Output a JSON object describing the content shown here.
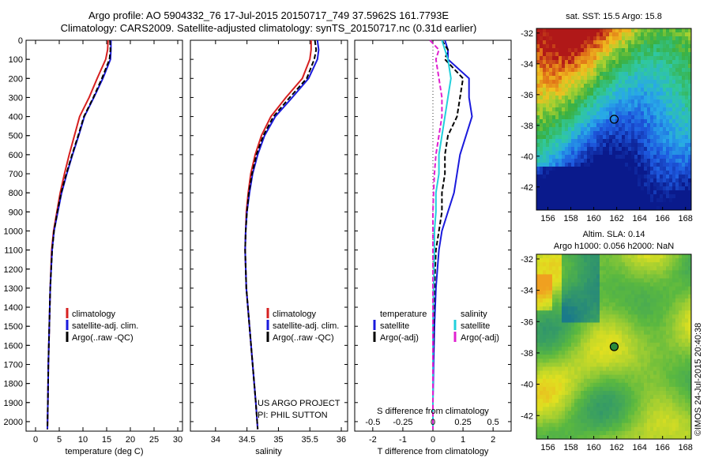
{
  "header": {
    "line1": "Argo profile: AO 5904332_76 17-Jul-2015 20150717_749 37.5962S 161.7793E",
    "line2": "Climatology: CARS2009. Satellite-adjusted climatology: synTS_20150717.nc (0.31d earlier)"
  },
  "colors": {
    "climatology": "#d62020",
    "satellite": "#1a1adc",
    "argo": "#000000",
    "satellite_salinity": "#22d0dc",
    "argo_salinity": "#e020d0"
  },
  "legend": {
    "climatology": "climatology",
    "satellite": "satellite-adj. clim.",
    "argo": "Argo(..raw -QC)"
  },
  "diff_legend": {
    "temp_title": "temperature",
    "sal_title": "salinity",
    "satellite": "satellite",
    "argo": "Argo(-adj)"
  },
  "credits": {
    "project": "US ARGO PROJECT",
    "pi": "PI: PHIL SUTTON"
  },
  "chart_data": [
    {
      "type": "line",
      "ylabel": "",
      "xlabel": "temperature (deg C)",
      "xlim": [
        -2,
        31
      ],
      "ylim": [
        0,
        2050
      ],
      "y_reversed": true,
      "xticks": [
        0,
        5,
        10,
        15,
        20,
        25,
        30
      ],
      "yticks": [
        0,
        100,
        200,
        300,
        400,
        500,
        600,
        700,
        800,
        900,
        1000,
        1100,
        1200,
        1300,
        1400,
        1500,
        1600,
        1700,
        1800,
        1900,
        2000
      ],
      "series": [
        {
          "name": "climatology",
          "color": "#d62020",
          "style": "solid",
          "x": [
            15.3,
            15.2,
            14.8,
            13.0,
            11.3,
            9.3,
            8.2,
            7.1,
            6.1,
            5.2,
            4.5,
            3.8,
            3.4,
            3.1,
            2.9,
            2.7,
            2.6,
            2.5
          ],
          "y": [
            0,
            50,
            100,
            200,
            300,
            400,
            500,
            600,
            700,
            800,
            900,
            1000,
            1100,
            1300,
            1500,
            1700,
            1900,
            2040
          ]
        },
        {
          "name": "satellite-adj. clim.",
          "color": "#1a1adc",
          "style": "solid",
          "x": [
            15.9,
            15.9,
            15.8,
            14.2,
            12.3,
            10.3,
            9.1,
            7.8,
            6.6,
            5.5,
            4.7,
            3.9,
            3.5,
            3.1,
            2.9,
            2.7,
            2.6,
            2.5
          ],
          "y": [
            0,
            50,
            100,
            200,
            300,
            400,
            500,
            600,
            700,
            800,
            900,
            1000,
            1100,
            1300,
            1500,
            1700,
            1900,
            2040
          ]
        },
        {
          "name": "Argo(..raw -QC)",
          "color": "#000000",
          "style": "dash",
          "x": [
            15.7,
            15.8,
            15.6,
            14.0,
            12.2,
            10.2,
            9.0,
            7.7,
            6.5,
            5.4,
            4.6,
            3.9,
            3.5,
            3.1,
            2.9,
            2.7,
            2.6,
            2.5
          ],
          "y": [
            0,
            50,
            100,
            200,
            300,
            400,
            500,
            600,
            700,
            800,
            900,
            1000,
            1100,
            1300,
            1500,
            1700,
            1900,
            2040
          ]
        }
      ]
    },
    {
      "type": "line",
      "xlabel": "salinity",
      "xlim": [
        33.6,
        36.1
      ],
      "ylim": [
        0,
        2050
      ],
      "y_reversed": true,
      "xticks": [
        34,
        34.5,
        35,
        35.5,
        36
      ],
      "series": [
        {
          "name": "climatology",
          "color": "#d62020",
          "style": "solid",
          "x": [
            35.52,
            35.52,
            35.5,
            35.38,
            35.12,
            34.88,
            34.73,
            34.63,
            34.56,
            34.52,
            34.49,
            34.48,
            34.47,
            34.49,
            34.54,
            34.59,
            34.64,
            34.67
          ],
          "y": [
            0,
            50,
            100,
            200,
            300,
            400,
            500,
            600,
            700,
            800,
            900,
            1000,
            1100,
            1300,
            1500,
            1700,
            1900,
            2040
          ]
        },
        {
          "name": "satellite-adj. clim.",
          "color": "#1a1adc",
          "style": "solid",
          "x": [
            35.62,
            35.64,
            35.62,
            35.48,
            35.22,
            34.95,
            34.78,
            34.67,
            34.59,
            34.54,
            34.5,
            34.48,
            34.47,
            34.49,
            34.54,
            34.59,
            34.64,
            34.67
          ],
          "y": [
            0,
            50,
            100,
            200,
            300,
            400,
            500,
            600,
            700,
            800,
            900,
            1000,
            1100,
            1300,
            1500,
            1700,
            1900,
            2040
          ]
        },
        {
          "name": "Argo(..raw -QC)",
          "color": "#000000",
          "style": "dash",
          "x": [
            35.58,
            35.6,
            35.57,
            35.45,
            35.18,
            34.92,
            34.76,
            34.65,
            34.58,
            34.53,
            34.5,
            34.48,
            34.47,
            34.49,
            34.54,
            34.59,
            34.64,
            34.67
          ],
          "y": [
            0,
            50,
            100,
            200,
            300,
            400,
            500,
            600,
            700,
            800,
            900,
            1000,
            1100,
            1300,
            1500,
            1700,
            1900,
            2040
          ]
        }
      ]
    },
    {
      "type": "line",
      "xlabel": "T difference from climatology",
      "xlabel_top": "S difference from climatology",
      "xlim": [
        -2.6,
        2.6
      ],
      "ylim": [
        0,
        2050
      ],
      "y_reversed": true,
      "xticks": [
        -2,
        -1,
        0,
        1,
        2
      ],
      "xticks_top_labels": [
        "-0.5",
        "-0.25",
        "0",
        "0.25",
        "0.5"
      ],
      "series": [
        {
          "name": "temperature satellite",
          "color": "#1a1adc",
          "style": "solid",
          "x": [
            0.4,
            0.5,
            0.5,
            1.2,
            1.2,
            1.3,
            1.1,
            0.9,
            0.8,
            0.7,
            0.5,
            0.3,
            0.2,
            0.1,
            0.05,
            0.02,
            0.0,
            0.0
          ],
          "y": [
            0,
            50,
            100,
            200,
            300,
            400,
            500,
            600,
            700,
            800,
            900,
            1000,
            1100,
            1300,
            1500,
            1700,
            1900,
            2040
          ]
        },
        {
          "name": "temperature Argo(-adj)",
          "color": "#000000",
          "style": "dash",
          "x": [
            0.3,
            0.5,
            0.4,
            1.0,
            0.9,
            0.8,
            0.5,
            0.4,
            0.4,
            0.3,
            0.3,
            0.2,
            0.1,
            0.05,
            0.02,
            0.0,
            0.0,
            0.0
          ],
          "y": [
            0,
            50,
            100,
            200,
            300,
            400,
            500,
            600,
            700,
            800,
            900,
            1000,
            1100,
            1300,
            1500,
            1700,
            1900,
            2040
          ]
        },
        {
          "name": "salinity satellite",
          "color": "#22d0dc",
          "style": "solid",
          "x": [
            0.3,
            0.4,
            0.5,
            0.6,
            0.5,
            0.4,
            0.3,
            0.2,
            0.2,
            0.1,
            0.1,
            0.05,
            0.05,
            0.02,
            0.0,
            0.0,
            0.0,
            0.0
          ],
          "y": [
            0,
            50,
            100,
            200,
            300,
            400,
            500,
            600,
            700,
            800,
            900,
            1000,
            1100,
            1300,
            1500,
            1700,
            1900,
            2040
          ]
        },
        {
          "name": "salinity Argo(-adj)",
          "color": "#e020d0",
          "style": "dash",
          "x": [
            -0.1,
            0.2,
            0.1,
            0.2,
            0.3,
            0.3,
            0.2,
            0.1,
            0.05,
            0.02,
            0.0,
            0.0,
            0.0,
            0.0,
            0.0,
            0.0,
            0.0,
            0.0
          ],
          "y": [
            0,
            50,
            100,
            200,
            300,
            400,
            500,
            600,
            700,
            800,
            900,
            1000,
            1100,
            1300,
            1500,
            1700,
            1900,
            2040
          ]
        }
      ]
    },
    {
      "type": "heatmap",
      "title": "sat. SST: 15.5   Argo: 15.8",
      "xlim": [
        155,
        168.5
      ],
      "ylim": [
        -43.5,
        -31.7
      ],
      "xticks": [
        156,
        158,
        160,
        162,
        164,
        166,
        168
      ],
      "yticks": [
        -32,
        -34,
        -36,
        -38,
        -40,
        -42
      ],
      "marker": {
        "lon": 161.78,
        "lat": -37.6
      }
    },
    {
      "type": "heatmap",
      "title": "Altim. SLA: 0.14",
      "subtitle": "Argo h1000: 0.056  h2000: NaN",
      "xlim": [
        155,
        168.5
      ],
      "ylim": [
        -43.5,
        -31.7
      ],
      "xticks": [
        156,
        158,
        160,
        162,
        164,
        166,
        168
      ],
      "yticks": [
        -32,
        -34,
        -36,
        -38,
        -40,
        -42
      ],
      "marker": {
        "lon": 161.78,
        "lat": -37.6
      }
    }
  ],
  "stamp": "©IMOS 24-Jul-2015 20:40:38"
}
